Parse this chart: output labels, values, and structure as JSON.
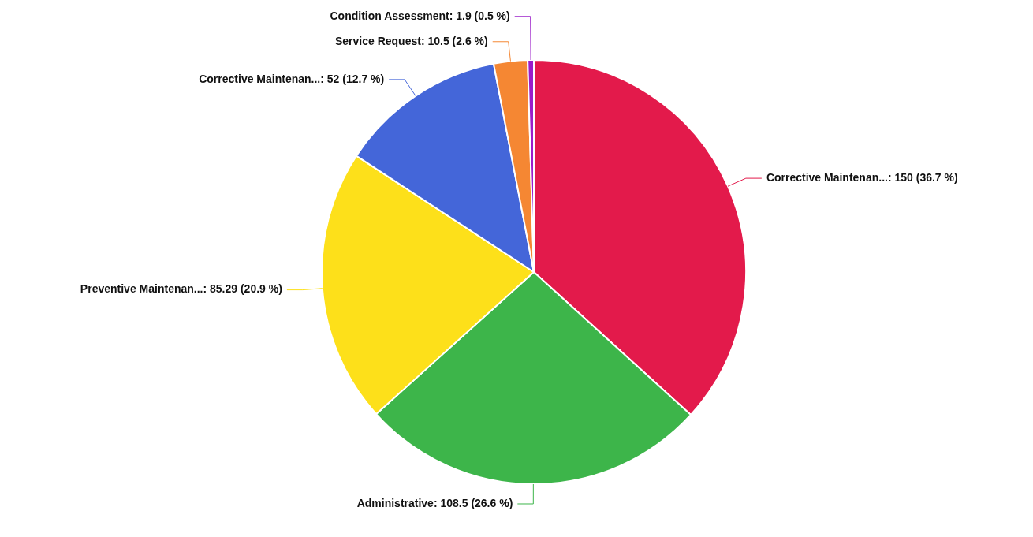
{
  "chart_data": {
    "type": "pie",
    "categories": [
      "Corrective Maintenan...",
      "Administrative",
      "Preventive Maintenan...",
      "Corrective Maintenan...",
      "Service Request",
      "Condition Assessment"
    ],
    "values": [
      150,
      108.5,
      85.29,
      52,
      10.5,
      1.9
    ],
    "value_labels": [
      "150 (36.7 %)",
      "108.5 (26.6 %)",
      "85.29 (20.9 %)",
      "52 (12.7 %)",
      "10.5 (2.6 %)",
      "1.9 (0.5 %)"
    ],
    "colors": [
      "#e31a4b",
      "#3db54a",
      "#fde01a",
      "#4466d9",
      "#f58733",
      "#9b1dc9"
    ],
    "legend": false
  }
}
